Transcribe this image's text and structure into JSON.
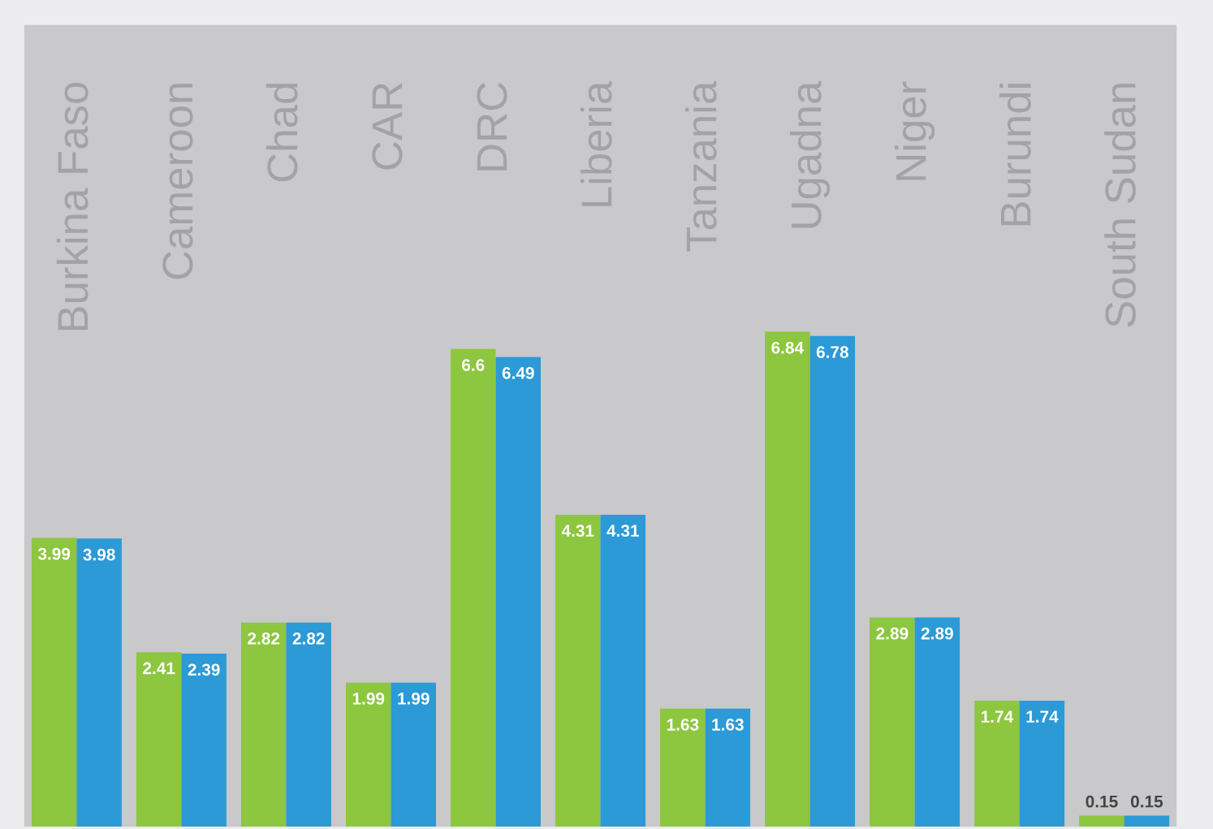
{
  "chart_data": {
    "type": "bar",
    "categories": [
      "Burkina Faso",
      "Cameroon",
      "Chad",
      "CAR",
      "DRC",
      "Liberia",
      "Tanzania",
      "Ugadna",
      "Niger",
      "Burundi",
      "South Sudan"
    ],
    "series": [
      {
        "color": "#8dc63f",
        "values": [
          3.99,
          2.41,
          2.82,
          1.99,
          6.6,
          4.31,
          1.63,
          6.84,
          2.89,
          1.74,
          0.15
        ]
      },
      {
        "color": "#2b9ad6",
        "values": [
          3.98,
          2.39,
          2.82,
          1.99,
          6.49,
          4.31,
          1.63,
          6.78,
          2.89,
          1.74,
          0.15
        ]
      }
    ],
    "data_labels": true
  }
}
